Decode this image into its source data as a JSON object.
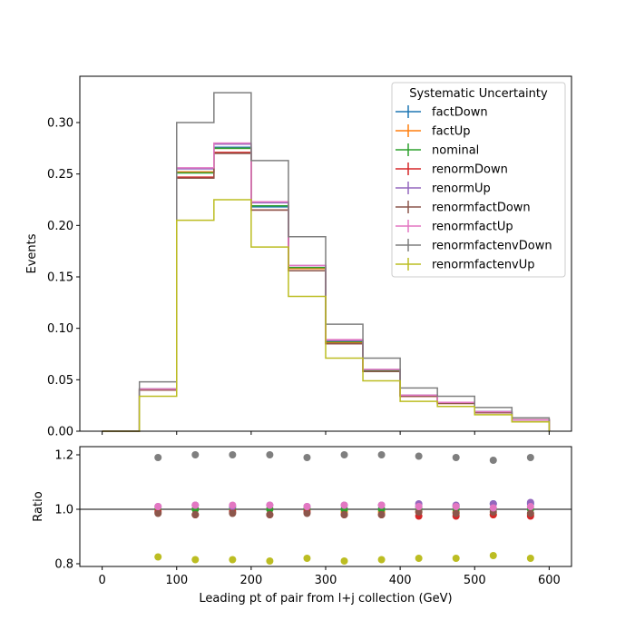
{
  "chart_data": {
    "type": "histogram-step",
    "xlabel": "Leading pt of pair from l+j collection (GeV)",
    "xlim": [
      -30,
      630
    ],
    "xticks": [
      0,
      100,
      200,
      300,
      400,
      500,
      600
    ],
    "bin_edges": [
      0,
      50,
      100,
      150,
      200,
      250,
      300,
      350,
      400,
      450,
      500,
      550,
      600
    ],
    "bin_centers": [
      75,
      125,
      175,
      225,
      275,
      325,
      375,
      425,
      475,
      525,
      575
    ],
    "main": {
      "ylabel": "Events",
      "ylim": [
        0,
        0.345
      ],
      "yticks": [
        0.0,
        0.05,
        0.1,
        0.15,
        0.2,
        0.25,
        0.3
      ],
      "ytick_labels": [
        "0.00",
        "0.05",
        "0.10",
        "0.15",
        "0.20",
        "0.25",
        "0.30"
      ]
    },
    "ratio": {
      "ylabel": "Ratio",
      "ylim": [
        0.79,
        1.23
      ],
      "yticks": [
        0.8,
        1.0,
        1.2
      ],
      "ytick_labels": [
        "0.8",
        "1.0",
        "1.2"
      ],
      "reference_line": 1.0
    },
    "legend": {
      "title": "Systematic Uncertainty",
      "position": "top-right"
    },
    "series": [
      {
        "name": "factDown",
        "color": "#1f77b4",
        "values": [
          0,
          0.041,
          0.252,
          0.276,
          0.218,
          0.159,
          0.087,
          0.059,
          0.035,
          0.028,
          0.019,
          0.011
        ],
        "ratio": [
          1.0,
          1.0,
          1.0,
          1.0,
          1.0,
          1.0,
          1.0,
          1.01,
          1.01,
          1.02,
          1.02
        ]
      },
      {
        "name": "factUp",
        "color": "#ff7f0e",
        "values": [
          0,
          0.041,
          0.252,
          0.275,
          0.219,
          0.158,
          0.086,
          0.058,
          0.034,
          0.027,
          0.018,
          0.011
        ],
        "ratio": [
          1.0,
          1.0,
          1.0,
          1.0,
          1.0,
          0.99,
          0.99,
          0.99,
          0.99,
          0.98,
          0.98
        ]
      },
      {
        "name": "nominal",
        "color": "#2ca02c",
        "values": [
          0,
          0.041,
          0.251,
          0.275,
          0.219,
          0.159,
          0.087,
          0.059,
          0.035,
          0.028,
          0.019,
          0.011
        ],
        "ratio": [
          1.0,
          1.0,
          1.0,
          1.0,
          1.0,
          1.0,
          1.0,
          1.0,
          1.0,
          1.0,
          1.0
        ]
      },
      {
        "name": "renormDown",
        "color": "#d62728",
        "values": [
          0,
          0.04,
          0.247,
          0.271,
          0.215,
          0.156,
          0.085,
          0.058,
          0.034,
          0.027,
          0.018,
          0.011
        ],
        "ratio": [
          0.99,
          0.98,
          0.99,
          0.98,
          0.99,
          0.98,
          0.98,
          0.975,
          0.975,
          0.98,
          0.975
        ]
      },
      {
        "name": "renormUp",
        "color": "#9467bd",
        "values": [
          0,
          0.041,
          0.255,
          0.279,
          0.222,
          0.161,
          0.088,
          0.06,
          0.035,
          0.028,
          0.019,
          0.011
        ],
        "ratio": [
          1.01,
          1.015,
          1.01,
          1.015,
          1.01,
          1.015,
          1.015,
          1.02,
          1.015,
          1.02,
          1.025
        ]
      },
      {
        "name": "renormfactDown",
        "color": "#8c564b",
        "values": [
          0,
          0.04,
          0.246,
          0.27,
          0.215,
          0.156,
          0.085,
          0.058,
          0.034,
          0.027,
          0.018,
          0.011
        ],
        "ratio": [
          0.985,
          0.98,
          0.985,
          0.98,
          0.985,
          0.98,
          0.98,
          0.99,
          0.985,
          0.99,
          0.985
        ]
      },
      {
        "name": "renormfactUp",
        "color": "#e377c2",
        "values": [
          0,
          0.041,
          0.256,
          0.28,
          0.223,
          0.161,
          0.089,
          0.06,
          0.035,
          0.028,
          0.019,
          0.011
        ],
        "ratio": [
          1.01,
          1.015,
          1.015,
          1.015,
          1.01,
          1.015,
          1.015,
          1.01,
          1.01,
          1.005,
          1.01
        ]
      },
      {
        "name": "renormfactenvDown",
        "color": "#7f7f7f",
        "values": [
          0,
          0.048,
          0.3,
          0.329,
          0.263,
          0.189,
          0.104,
          0.071,
          0.042,
          0.034,
          0.023,
          0.013
        ],
        "ratio": [
          1.19,
          1.2,
          1.2,
          1.2,
          1.19,
          1.2,
          1.2,
          1.195,
          1.19,
          1.18,
          1.19
        ]
      },
      {
        "name": "renormfactenvUp",
        "color": "#bcbd22",
        "values": [
          0,
          0.034,
          0.205,
          0.225,
          0.179,
          0.131,
          0.071,
          0.049,
          0.029,
          0.024,
          0.016,
          0.009
        ],
        "ratio": [
          0.825,
          0.815,
          0.815,
          0.81,
          0.82,
          0.81,
          0.815,
          0.82,
          0.82,
          0.83,
          0.82
        ]
      }
    ]
  }
}
